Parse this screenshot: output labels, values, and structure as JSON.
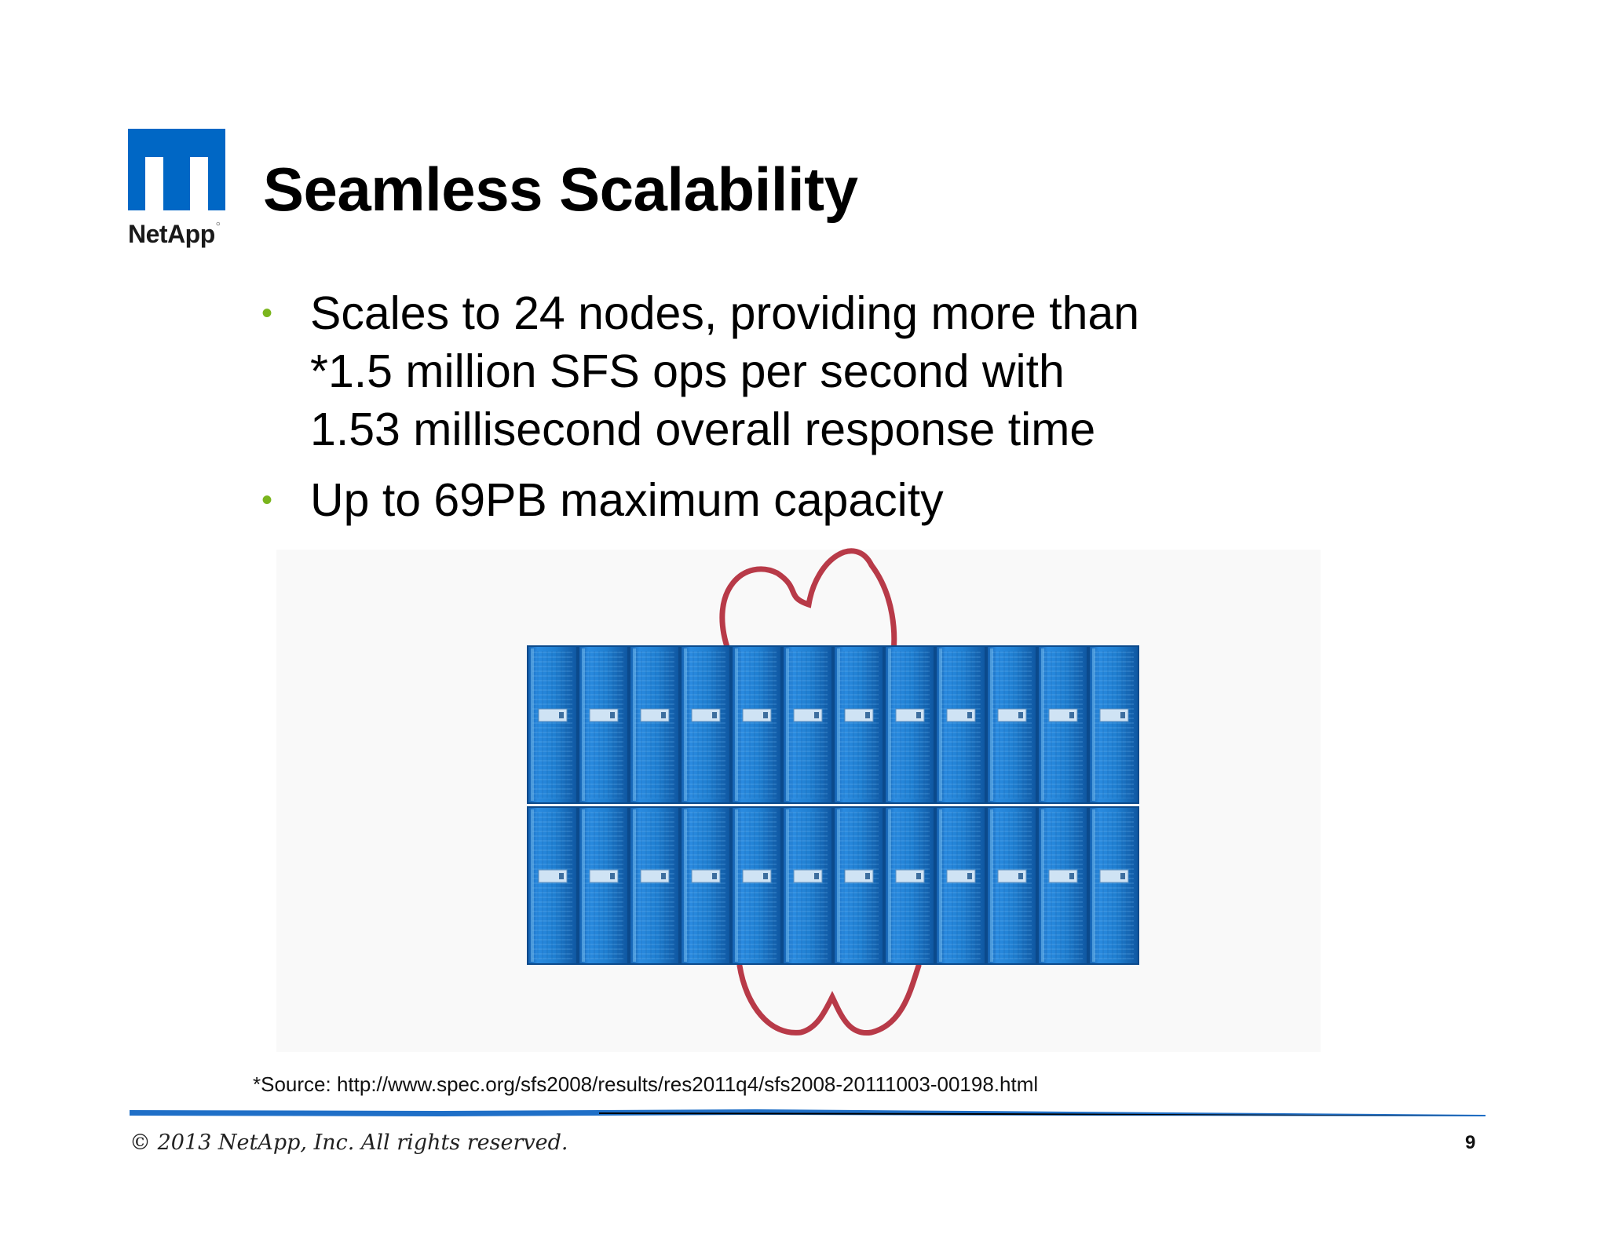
{
  "logo": {
    "name": "NetApp",
    "icon": "netapp-n-icon",
    "color": "#0067c5"
  },
  "title": "Seamless Scalability",
  "bullets": [
    {
      "lines": [
        "Scales to 24 nodes, providing more than",
        "*1.5 million SFS ops per second with",
        "1.53 millisecond overall response time"
      ]
    },
    {
      "lines": [
        "Up to 69PB maximum capacity"
      ]
    }
  ],
  "bullet_color": "#7ab51d",
  "figure": {
    "rows": 2,
    "racks_per_row": 12,
    "rack_color": "#1f7fd1",
    "cloud_color": "#b83a48"
  },
  "source_note": "*Source: http://www.spec.org/sfs2008/results/res2011q4/sfs2008-20111003-00198.html",
  "footer": {
    "copyright": "© 2013 NetApp, Inc. All rights reserved.",
    "page_number": "9",
    "divider_color": "#1f6fc7"
  }
}
